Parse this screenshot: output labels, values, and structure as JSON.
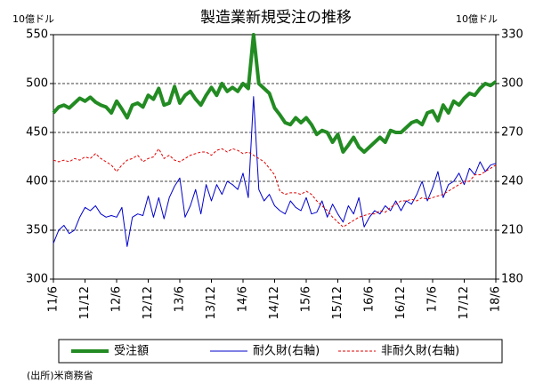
{
  "chart_data": {
    "type": "line",
    "title": "製造業新規受注の推移",
    "y_label": "10億ドル",
    "y2_label": "10億ドル",
    "source": "(出所)米商務省",
    "categories": [
      "11/6",
      null,
      null,
      null,
      null,
      null,
      "11/12",
      null,
      null,
      null,
      null,
      null,
      "12/6",
      null,
      null,
      null,
      null,
      null,
      "12/12",
      null,
      null,
      null,
      null,
      null,
      "13/6",
      null,
      null,
      null,
      null,
      null,
      "13/12",
      null,
      null,
      null,
      null,
      null,
      "14/6",
      null,
      null,
      null,
      null,
      null,
      "14/12",
      null,
      null,
      null,
      null,
      null,
      "15/6",
      null,
      null,
      null,
      null,
      null,
      "15/12",
      null,
      null,
      null,
      null,
      null,
      "16/6",
      null,
      null,
      null,
      null,
      null,
      "16/12",
      null,
      null,
      null,
      null,
      null,
      "17/6",
      null,
      null,
      null,
      null,
      null,
      "17/12",
      null,
      null,
      null,
      null,
      null,
      "18/6"
    ],
    "ylim": [
      300,
      550
    ],
    "yticks": [
      300,
      350,
      400,
      450,
      500,
      550
    ],
    "y2lim": [
      180,
      330
    ],
    "y2ticks": [
      180,
      210,
      240,
      270,
      300,
      330
    ],
    "grid": true,
    "series": [
      {
        "name": "受注額",
        "color": "#228b22",
        "style": "solid",
        "width": 4,
        "values": [
          470,
          476,
          478,
          475,
          480,
          485,
          482,
          486,
          481,
          478,
          476,
          470,
          482,
          474,
          465,
          478,
          480,
          476,
          488,
          484,
          495,
          478,
          480,
          497,
          480,
          488,
          492,
          484,
          478,
          488,
          496,
          488,
          500,
          492,
          496,
          492,
          500,
          495,
          550,
          500,
          495,
          490,
          475,
          468,
          460,
          458,
          465,
          460,
          465,
          458,
          448,
          452,
          450,
          440,
          448,
          430,
          437,
          445,
          435,
          430,
          435,
          440,
          445,
          440,
          452,
          450,
          450,
          455,
          460,
          462,
          458,
          470,
          472,
          462,
          478,
          470,
          482,
          478,
          485,
          490,
          488,
          495,
          500,
          498,
          502
        ]
      },
      {
        "name": "耐久財(右軸)",
        "color": "#0000cc",
        "style": "solid",
        "width": 1,
        "axis": "y2",
        "values": [
          202,
          210,
          213,
          208,
          210,
          218,
          224,
          222,
          225,
          220,
          218,
          219,
          218,
          224,
          200,
          218,
          220,
          219,
          231,
          218,
          230,
          217,
          230,
          237,
          242,
          218,
          225,
          235,
          220,
          238,
          228,
          238,
          232,
          240,
          238,
          235,
          245,
          230,
          292,
          235,
          228,
          232,
          225,
          222,
          220,
          228,
          224,
          222,
          230,
          220,
          221,
          228,
          218,
          226,
          220,
          215,
          225,
          220,
          230,
          212,
          218,
          222,
          220,
          225,
          222,
          228,
          222,
          228,
          226,
          232,
          240,
          228,
          236,
          246,
          230,
          238,
          240,
          245,
          238,
          248,
          244,
          252,
          246,
          250,
          251
        ]
      },
      {
        "name": "非耐久財(右軸)",
        "color": "#e00000",
        "style": "dashed",
        "width": 1,
        "axis": "y2",
        "values": [
          253,
          252,
          253,
          252,
          254,
          253,
          255,
          254,
          257,
          254,
          252,
          250,
          246,
          250,
          253,
          254,
          256,
          252,
          254,
          255,
          260,
          254,
          256,
          253,
          252,
          254,
          256,
          257,
          258,
          258,
          256,
          259,
          260,
          258,
          260,
          259,
          257,
          258,
          256,
          254,
          252,
          248,
          244,
          234,
          232,
          233,
          233,
          232,
          234,
          232,
          228,
          225,
          222,
          218,
          215,
          212,
          214,
          216,
          218,
          219,
          220,
          220,
          222,
          221,
          224,
          226,
          228,
          228,
          229,
          228,
          230,
          229,
          230,
          231,
          232,
          234,
          236,
          238,
          240,
          240,
          244,
          244,
          246,
          248,
          250
        ]
      }
    ]
  }
}
